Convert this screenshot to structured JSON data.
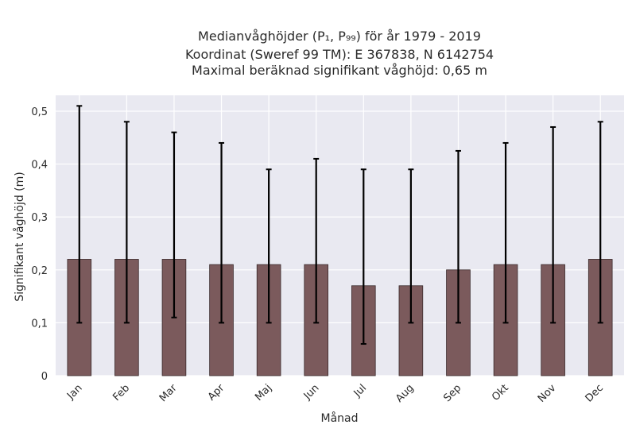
{
  "chart_data": {
    "type": "bar",
    "title_lines": [
      "Medianvåghöjder (P₁, P₉₉) för år 1979 - 2019",
      "Koordinat (Sweref 99 TM): E 367838, N 6142754",
      "Maximal beräknad signifikant våghöjd: 0,65 m"
    ],
    "xlabel": "Månad",
    "ylabel": "Signifikant våghöjd (m)",
    "categories": [
      "Jan",
      "Feb",
      "Mar",
      "Apr",
      "Maj",
      "Jun",
      "Jul",
      "Aug",
      "Sep",
      "Okt",
      "Nov",
      "Dec"
    ],
    "values": [
      0.22,
      0.22,
      0.22,
      0.21,
      0.21,
      0.21,
      0.17,
      0.17,
      0.2,
      0.21,
      0.21,
      0.22
    ],
    "p1": [
      0.1,
      0.1,
      0.11,
      0.1,
      0.1,
      0.1,
      0.06,
      0.1,
      0.1,
      0.1,
      0.1,
      0.1
    ],
    "p99": [
      0.51,
      0.48,
      0.46,
      0.44,
      0.39,
      0.41,
      0.39,
      0.39,
      0.425,
      0.44,
      0.47,
      0.48
    ],
    "yticks": [
      {
        "value": 0,
        "label": "0"
      },
      {
        "value": 0.1,
        "label": "0,1"
      },
      {
        "value": 0.2,
        "label": "0,2"
      },
      {
        "value": 0.3,
        "label": "0,3"
      },
      {
        "value": 0.4,
        "label": "0,4"
      },
      {
        "value": 0.5,
        "label": "0,5"
      }
    ],
    "ylim": [
      0,
      0.53
    ],
    "grid": true,
    "colors": {
      "bar": "#7b5a5c",
      "bar_edge": "#3a2a2b",
      "error_bar": "#000000",
      "plot_background": "#e9e9f1",
      "grid": "#ffffff"
    }
  }
}
